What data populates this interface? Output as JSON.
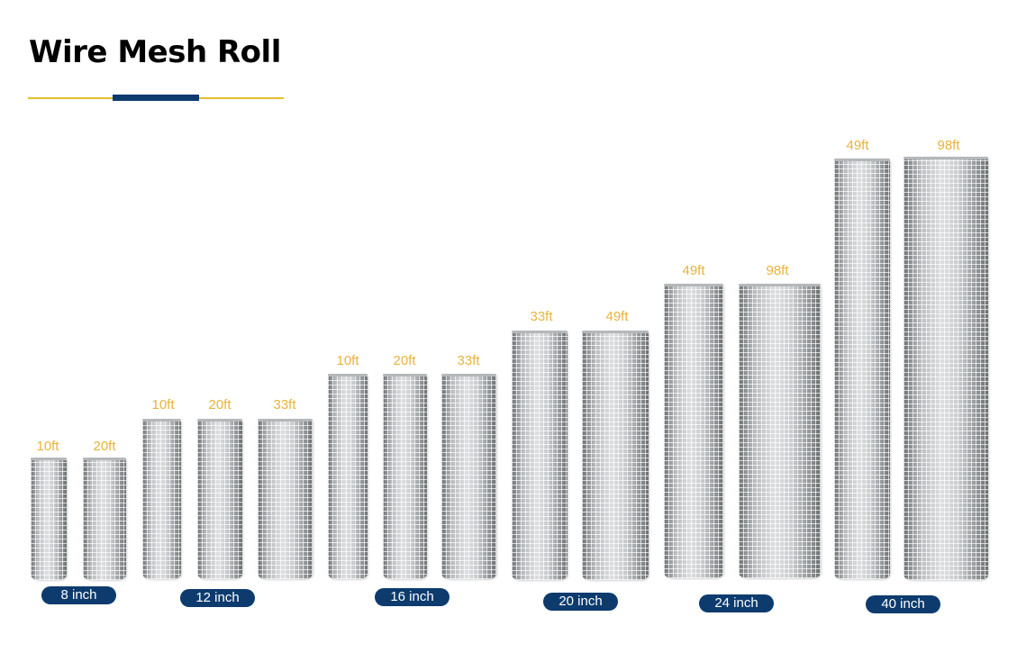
{
  "page": {
    "title": "Wire Mesh Roll"
  },
  "colors": {
    "accent_gold": "#e7bc2e",
    "label_gold": "#e8b33a",
    "navy": "#0d3b6e"
  },
  "groups": [
    {
      "width_label": "8 inch",
      "rolls": [
        {
          "length": "10ft"
        },
        {
          "length": "20ft"
        }
      ]
    },
    {
      "width_label": "12 inch",
      "rolls": [
        {
          "length": "10ft"
        },
        {
          "length": "20ft"
        },
        {
          "length": "33ft"
        }
      ]
    },
    {
      "width_label": "16 inch",
      "rolls": [
        {
          "length": "10ft"
        },
        {
          "length": "20ft"
        },
        {
          "length": "33ft"
        }
      ]
    },
    {
      "width_label": "20 inch",
      "rolls": [
        {
          "length": "33ft"
        },
        {
          "length": "49ft"
        }
      ]
    },
    {
      "width_label": "24 inch",
      "rolls": [
        {
          "length": "49ft"
        },
        {
          "length": "98ft"
        }
      ]
    },
    {
      "width_label": "40 inch",
      "rolls": [
        {
          "length": "49ft"
        },
        {
          "length": "98ft"
        }
      ]
    }
  ]
}
